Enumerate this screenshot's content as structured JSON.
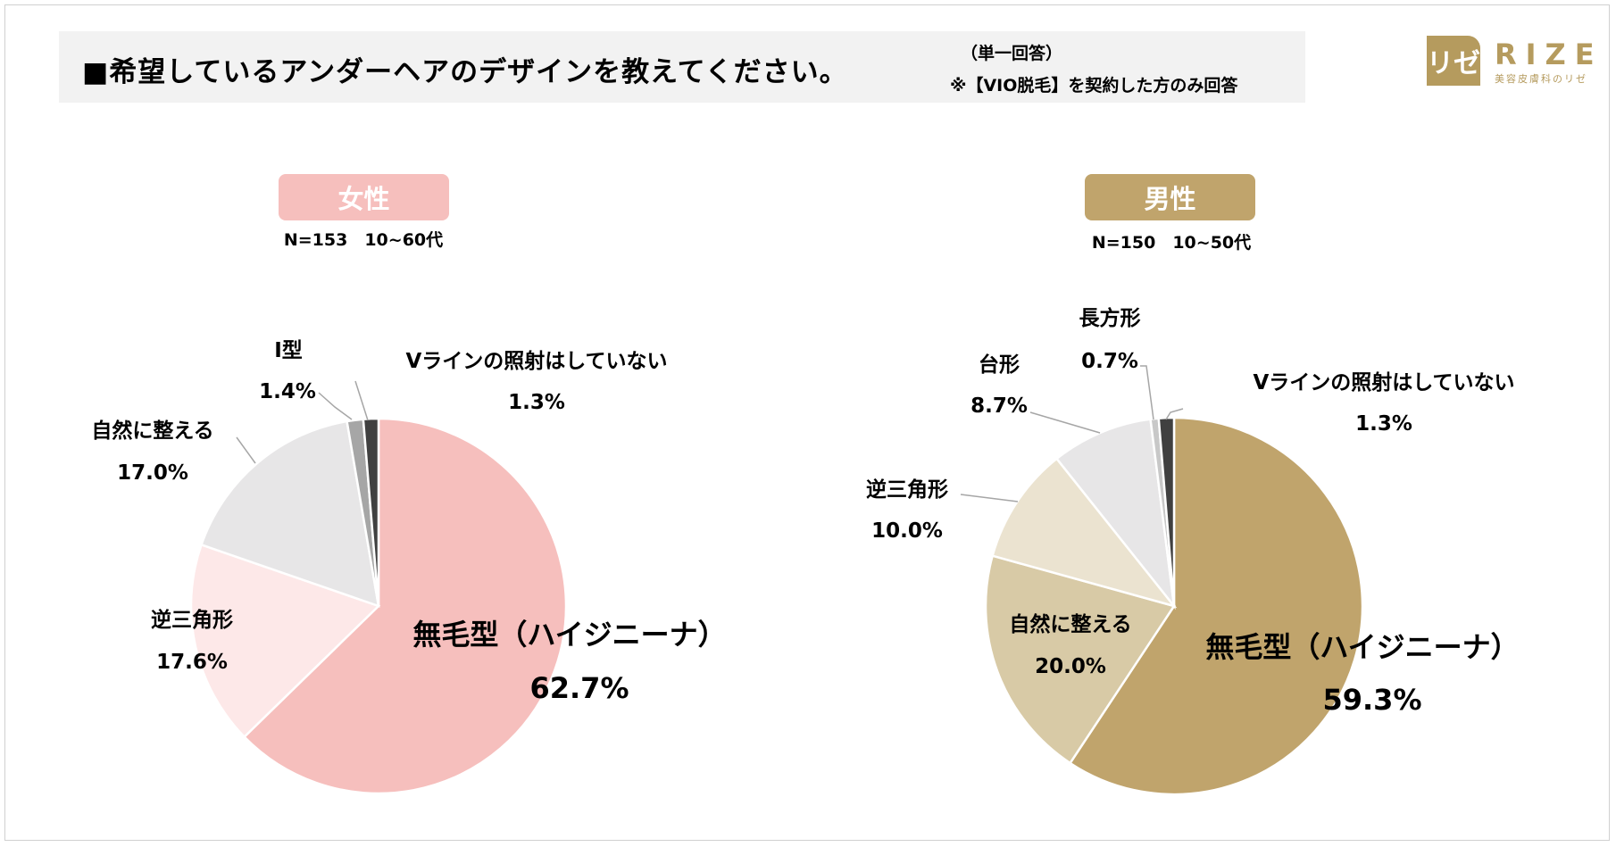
{
  "header": {
    "title": "■希望しているアンダーヘアのデザインを教えてください。",
    "note1": "（単一回答）",
    "note2": "※【VIO脱毛】を契約した方のみ回答"
  },
  "logo": {
    "mark": "リゼ",
    "word": "RIZE",
    "tagline": "美容皮膚科のリゼ"
  },
  "colors": {
    "female_accent": "#f6bfbd",
    "male_accent": "#c0a46c"
  },
  "chart_data": [
    {
      "type": "pie",
      "title": "女性",
      "subtitle": "N=153　10~60代",
      "slices": [
        {
          "label": "無毛型（ハイジニーナ）",
          "value": 62.7,
          "value_label": "62.7%",
          "color": "#f6bfbd"
        },
        {
          "label": "逆三角形",
          "value": 17.6,
          "value_label": "17.6%",
          "color": "#fde8e8"
        },
        {
          "label": "自然に整える",
          "value": 17.0,
          "value_label": "17.0%",
          "color": "#e7e6e7"
        },
        {
          "label": "I型",
          "value": 1.4,
          "value_label": "1.4%",
          "color": "#a6a6a6"
        },
        {
          "label": "Vラインの照射はしていない",
          "value": 1.3,
          "value_label": "1.3%",
          "color": "#404040"
        }
      ]
    },
    {
      "type": "pie",
      "title": "男性",
      "subtitle": "N=150　10~50代",
      "slices": [
        {
          "label": "無毛型（ハイジニーナ）",
          "value": 59.3,
          "value_label": "59.3%",
          "color": "#c0a46c"
        },
        {
          "label": "自然に整える",
          "value": 20.0,
          "value_label": "20.0%",
          "color": "#d8caa6"
        },
        {
          "label": "逆三角形",
          "value": 10.0,
          "value_label": "10.0%",
          "color": "#ebe3d0"
        },
        {
          "label": "台形",
          "value": 8.7,
          "value_label": "8.7%",
          "color": "#e7e6e7"
        },
        {
          "label": "長方形",
          "value": 0.7,
          "value_label": "0.7%",
          "color": "#c8c8c8"
        },
        {
          "label": "Vラインの照射はしていない",
          "value": 1.3,
          "value_label": "1.3%",
          "color": "#404040"
        }
      ]
    }
  ]
}
